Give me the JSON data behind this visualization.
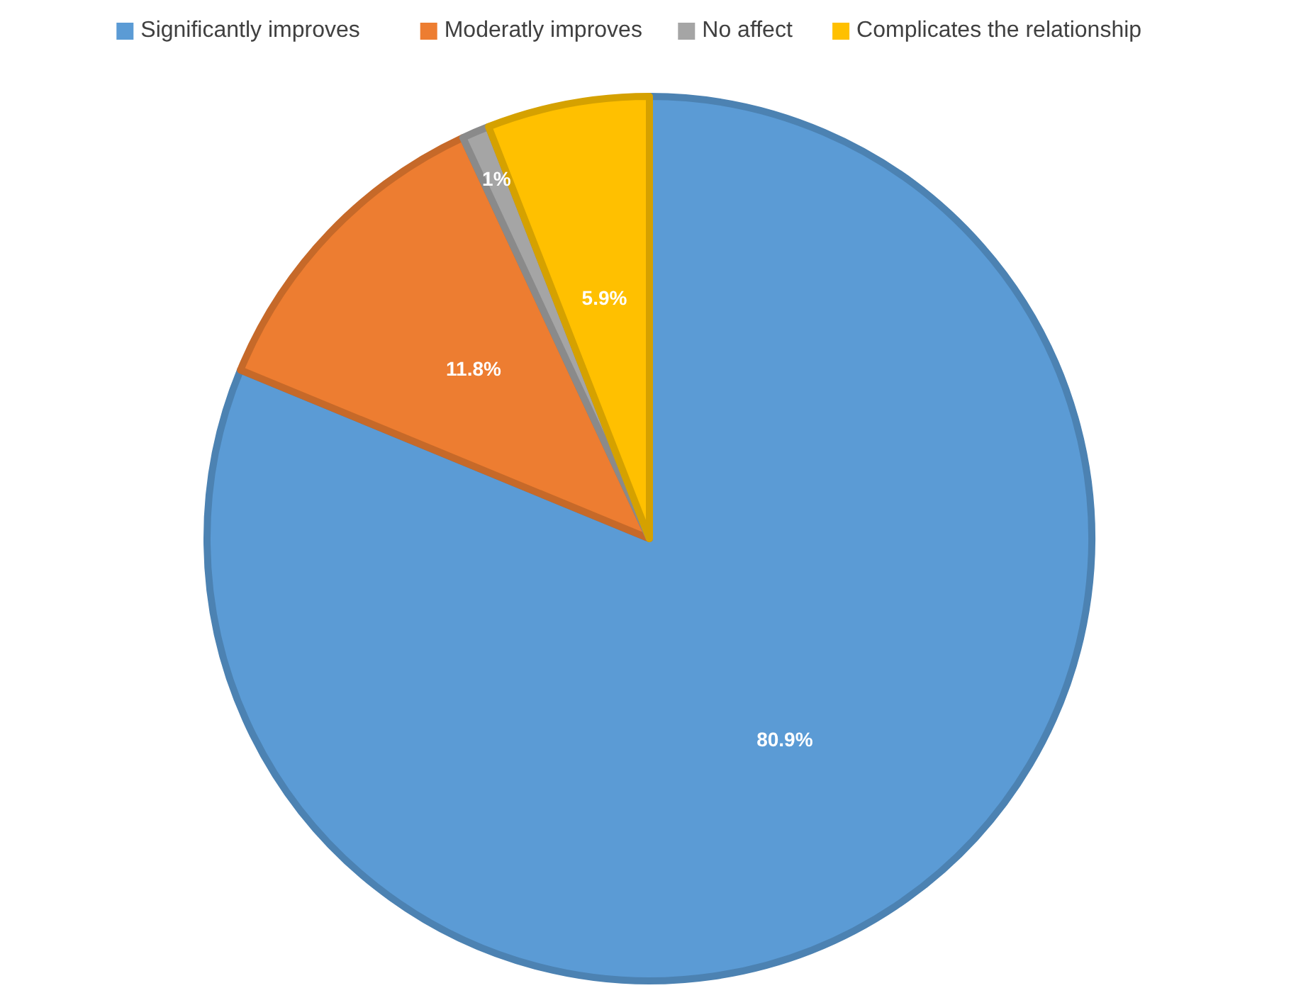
{
  "chart_data": {
    "type": "pie",
    "categories": [
      "Significantly improves",
      "Moderatly improves",
      "No affect",
      "Complicates the relationship"
    ],
    "values": [
      80.9,
      11.8,
      1,
      5.9
    ],
    "colors": [
      "#5b9bd5",
      "#ed7d31",
      "#a5a5a5",
      "#ffc000"
    ],
    "value_labels": [
      "80.9%",
      "11.8%",
      "1%",
      "5.9%"
    ],
    "legend": "top"
  }
}
